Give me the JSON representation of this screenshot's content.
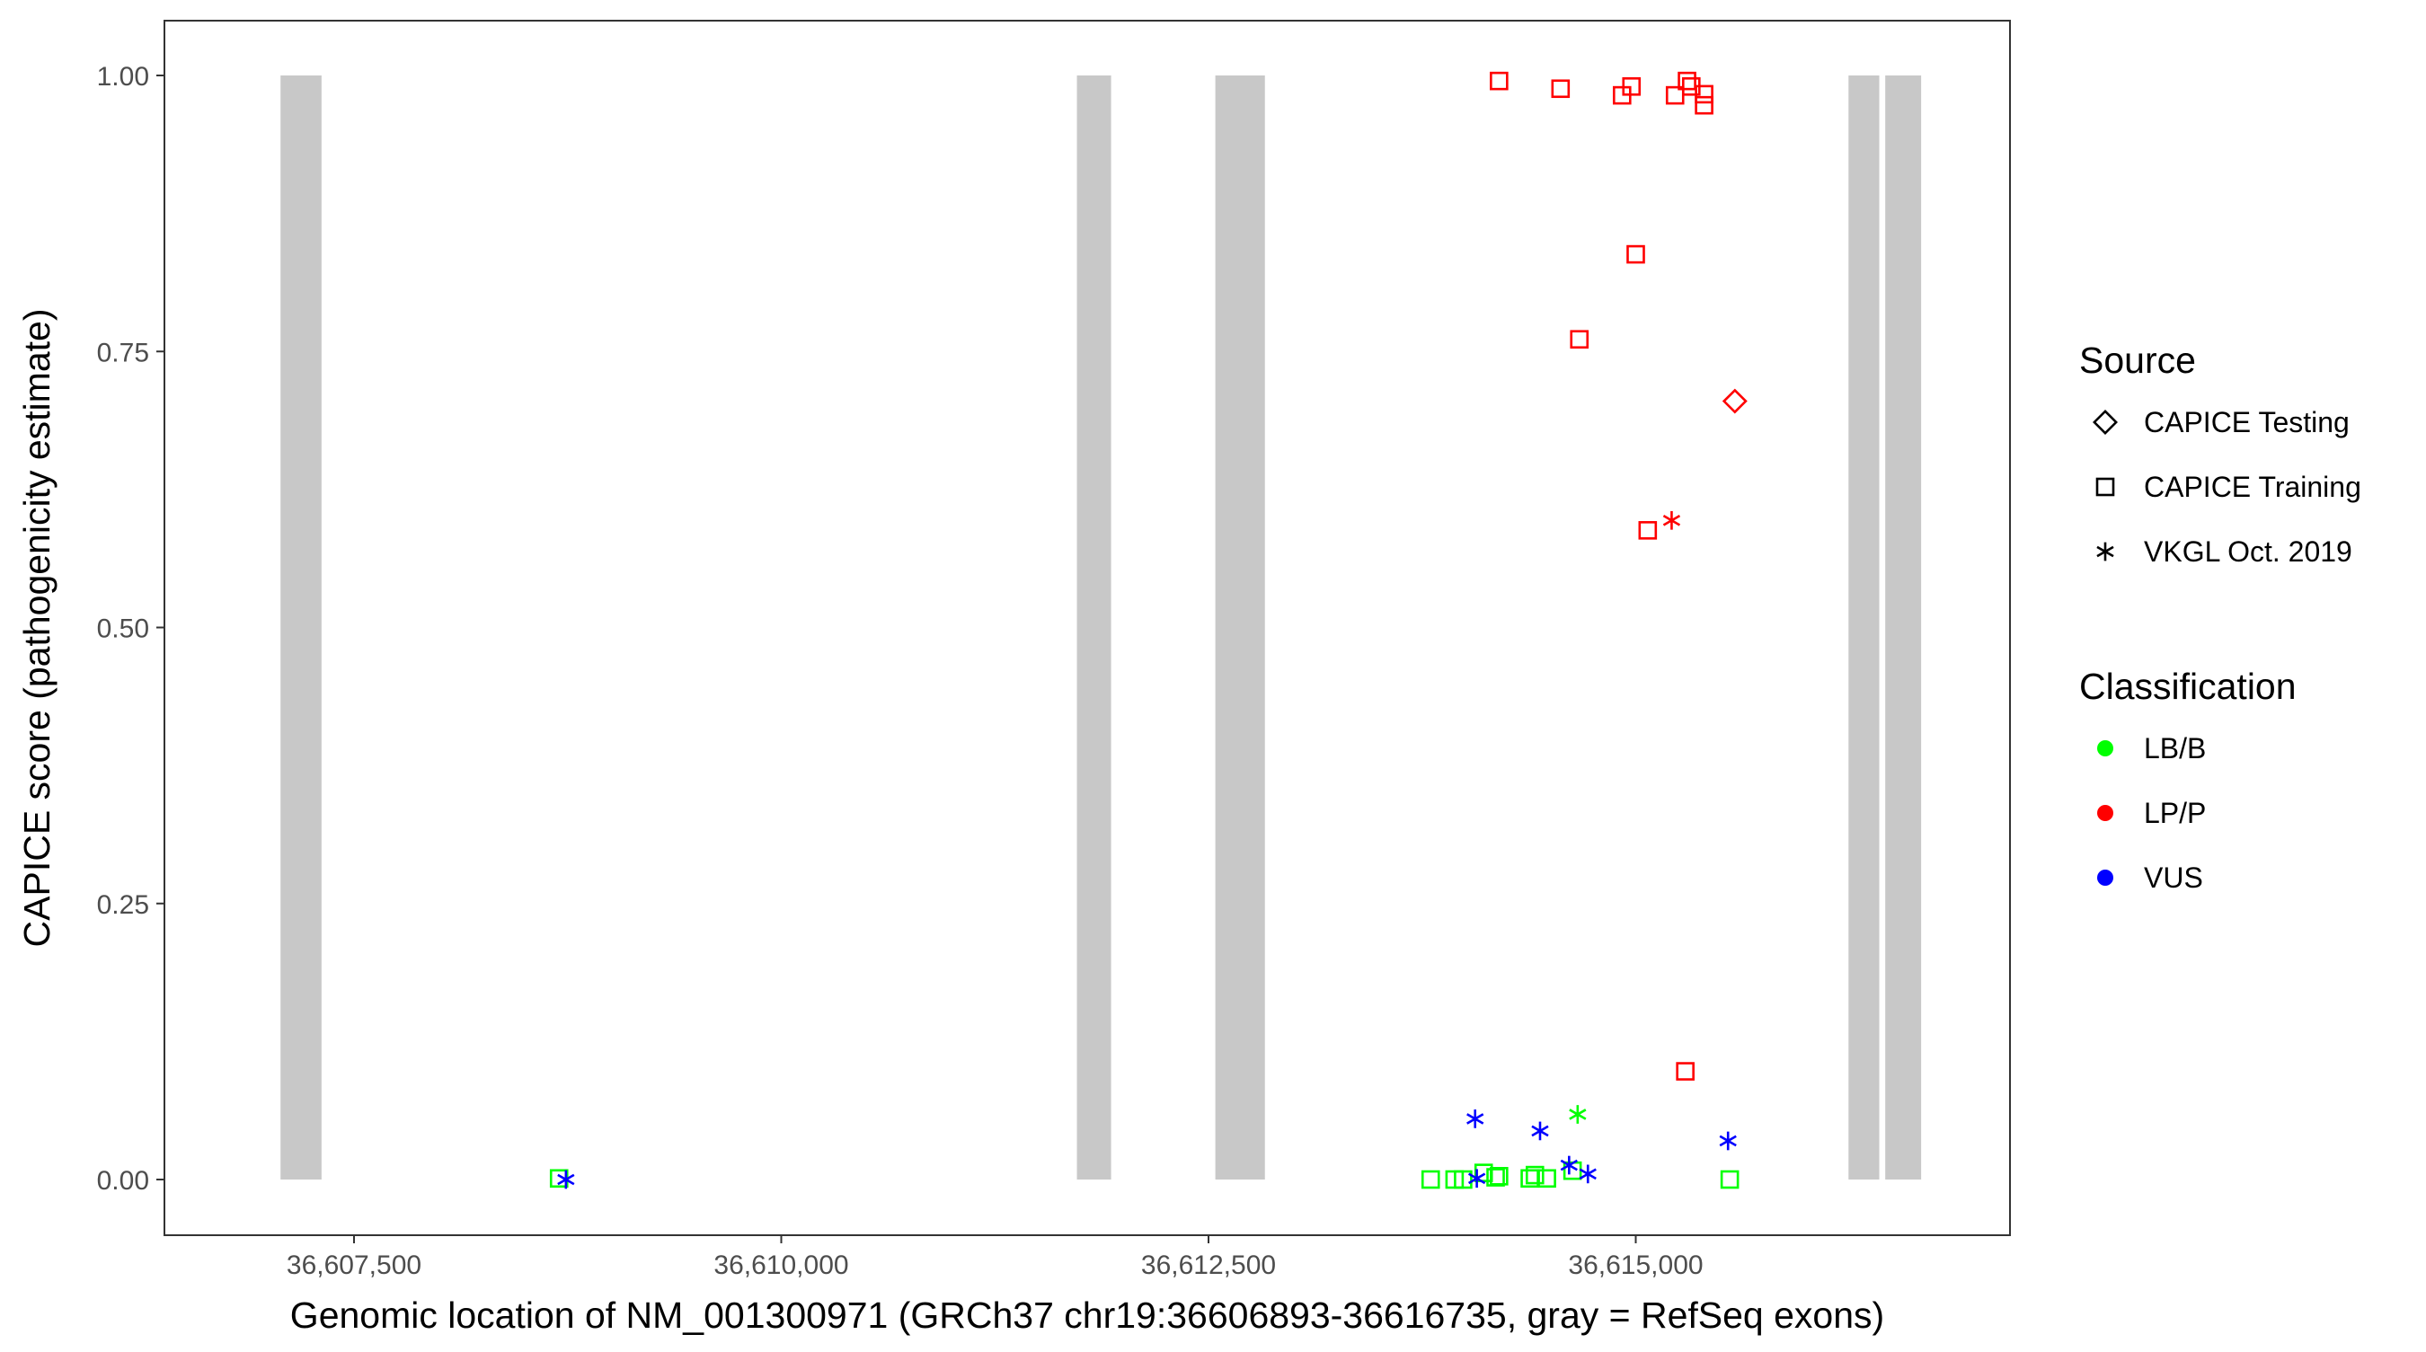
{
  "chart_data": {
    "type": "scatter",
    "xlabel": "Genomic location of NM_001300971 (GRCh37 chr19:36606893-36616735, gray = RefSeq exons)",
    "ylabel": "CAPICE score (pathogenicity estimate)",
    "xlim": [
      36606650,
      36617350
    ],
    "ylim": [
      -0.047,
      1.05
    ],
    "x_ticks": [
      36607500,
      36610000,
      36612500,
      36615000
    ],
    "x_tick_labels": [
      "36,607,500",
      "36,610,000",
      "36,612,500",
      "36,615,000"
    ],
    "y_ticks": [
      0,
      0.25,
      0.5,
      0.75,
      1
    ],
    "y_tick_labels": [
      "0.00",
      "0.25",
      "0.50",
      "0.75",
      "1.00"
    ],
    "grid": false,
    "exons": [
      {
        "start": 36607070,
        "end": 36607310
      },
      {
        "start": 36611730,
        "end": 36611930
      },
      {
        "start": 36612540,
        "end": 36612830
      },
      {
        "start": 36616245,
        "end": 36616425
      },
      {
        "start": 36616460,
        "end": 36616670
      }
    ],
    "legend": {
      "position": "right",
      "source_title": "Source",
      "source_entries": [
        {
          "label": "CAPICE Testing",
          "shape": "diamond"
        },
        {
          "label": "CAPICE Training",
          "shape": "square"
        },
        {
          "label": "VKGL Oct. 2019",
          "shape": "asterisk"
        }
      ],
      "class_title": "Classification",
      "class_entries": [
        {
          "label": "LB/B",
          "color": "#00FF00"
        },
        {
          "label": "LP/P",
          "color": "#FF0000"
        },
        {
          "label": "VUS",
          "color": "#0000FF"
        }
      ]
    },
    "colors": {
      "LB/B": "#00FF00",
      "LP/P": "#FF0000",
      "VUS": "#0000FF"
    },
    "points": [
      {
        "x": 36614200,
        "y": 0.995,
        "cls": "LP/P",
        "src": "square"
      },
      {
        "x": 36614560,
        "y": 0.988,
        "cls": "LP/P",
        "src": "square"
      },
      {
        "x": 36614920,
        "y": 0.982,
        "cls": "LP/P",
        "src": "square"
      },
      {
        "x": 36614975,
        "y": 0.99,
        "cls": "LP/P",
        "src": "square"
      },
      {
        "x": 36615230,
        "y": 0.982,
        "cls": "LP/P",
        "src": "square"
      },
      {
        "x": 36615300,
        "y": 0.995,
        "cls": "LP/P",
        "src": "square"
      },
      {
        "x": 36615325,
        "y": 0.99,
        "cls": "LP/P",
        "src": "square"
      },
      {
        "x": 36615400,
        "y": 0.983,
        "cls": "LP/P",
        "src": "square"
      },
      {
        "x": 36615400,
        "y": 0.973,
        "cls": "LP/P",
        "src": "square"
      },
      {
        "x": 36615000,
        "y": 0.838,
        "cls": "LP/P",
        "src": "square"
      },
      {
        "x": 36614670,
        "y": 0.761,
        "cls": "LP/P",
        "src": "square"
      },
      {
        "x": 36615070,
        "y": 0.588,
        "cls": "LP/P",
        "src": "square"
      },
      {
        "x": 36615290,
        "y": 0.098,
        "cls": "LP/P",
        "src": "square"
      },
      {
        "x": 36615580,
        "y": 0.705,
        "cls": "LP/P",
        "src": "diamond"
      },
      {
        "x": 36615210,
        "y": 0.597,
        "cls": "LP/P",
        "src": "asterisk"
      },
      {
        "x": 36608700,
        "y": 0.001,
        "cls": "LB/B",
        "src": "square"
      },
      {
        "x": 36613800,
        "y": 0.0,
        "cls": "LB/B",
        "src": "square"
      },
      {
        "x": 36613940,
        "y": 0.0,
        "cls": "LB/B",
        "src": "square"
      },
      {
        "x": 36613990,
        "y": 0.0,
        "cls": "LB/B",
        "src": "square"
      },
      {
        "x": 36614110,
        "y": 0.006,
        "cls": "LB/B",
        "src": "square"
      },
      {
        "x": 36614180,
        "y": 0.002,
        "cls": "LB/B",
        "src": "square"
      },
      {
        "x": 36614200,
        "y": 0.003,
        "cls": "LB/B",
        "src": "square"
      },
      {
        "x": 36614380,
        "y": 0.001,
        "cls": "LB/B",
        "src": "square"
      },
      {
        "x": 36614410,
        "y": 0.004,
        "cls": "LB/B",
        "src": "square"
      },
      {
        "x": 36614480,
        "y": 0.001,
        "cls": "LB/B",
        "src": "square"
      },
      {
        "x": 36614630,
        "y": 0.008,
        "cls": "LB/B",
        "src": "square"
      },
      {
        "x": 36615550,
        "y": 0.0,
        "cls": "LB/B",
        "src": "square"
      },
      {
        "x": 36614660,
        "y": 0.059,
        "cls": "LB/B",
        "src": "asterisk"
      },
      {
        "x": 36608740,
        "y": 0.0,
        "cls": "VUS",
        "src": "asterisk"
      },
      {
        "x": 36614060,
        "y": 0.055,
        "cls": "VUS",
        "src": "asterisk"
      },
      {
        "x": 36614070,
        "y": 0.001,
        "cls": "VUS",
        "src": "asterisk"
      },
      {
        "x": 36614440,
        "y": 0.044,
        "cls": "VUS",
        "src": "asterisk"
      },
      {
        "x": 36614610,
        "y": 0.013,
        "cls": "VUS",
        "src": "asterisk"
      },
      {
        "x": 36614720,
        "y": 0.005,
        "cls": "VUS",
        "src": "asterisk"
      },
      {
        "x": 36615540,
        "y": 0.035,
        "cls": "VUS",
        "src": "asterisk"
      }
    ]
  }
}
